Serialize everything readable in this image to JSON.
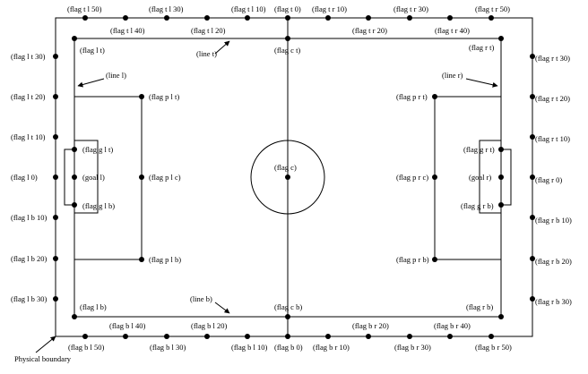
{
  "physical_boundary_label": "Physical boundary",
  "line_labels": {
    "top": "(line t)",
    "left": "(line l)",
    "right": "(line r)",
    "bottom": "(line b)"
  },
  "flags": {
    "tl50": "(flag t l 50)",
    "tl30": "(flag t l 30)",
    "tl10": "(flag t l 10)",
    "t0": "(flag t 0)",
    "tr10": "(flag t r 10)",
    "tr30": "(flag t r 30)",
    "tr50": "(flag t r 50)",
    "tl40": "(flag t l 40)",
    "tl20": "(flag t l 20)",
    "tr20": "(flag t r 20)",
    "tr40": "(flag t r 40)",
    "lt": "(flag l t)",
    "ct": "(flag c t)",
    "rt": "(flag r t)",
    "l_t30": "(flag l t 30)",
    "l_t20": "(flag l t 20)",
    "l_t10": "(flag l t 10)",
    "l0": "(flag l 0)",
    "l_b10": "(flag l b 10)",
    "l_b20": "(flag l b 20)",
    "l_b30": "(flag l b 30)",
    "r_t30": "(flag r t 30)",
    "r_t20": "(flag r t 20)",
    "r_t10": "(flag r t 10)",
    "r0": "(flag r 0)",
    "r_b10": "(flag r b 10)",
    "r_b20": "(flag r b 20)",
    "r_b30": "(flag r b 30)",
    "plt": "(flag p l t)",
    "plc": "(flag p l c)",
    "plb": "(flag p l b)",
    "prt": "(flag p r t)",
    "prc": "(flag p r c)",
    "prb": "(flag p r b)",
    "glt": "(flag g l t)",
    "glb": "(flag g l b)",
    "grt": "(flag g r t)",
    "grb": "(flag g r b)",
    "goal_l": "(goal l)",
    "goal_r": "(goal r)",
    "center": "(flag c)",
    "lb": "(flag l b)",
    "cb": "(flag c b)",
    "rb": "(flag r b)",
    "bl40": "(flag b l 40)",
    "bl20": "(flag b l 20)",
    "br20": "(flag b r 20)",
    "br40": "(flag b r 40)",
    "bl50": "(flag b l 50)",
    "bl30": "(flag b l 30)",
    "bl10": "(flag b l 10)",
    "b0": "(flag b 0)",
    "br10": "(flag b r 10)",
    "br30": "(flag b r 30)",
    "br50": "(flag b r 50)"
  }
}
